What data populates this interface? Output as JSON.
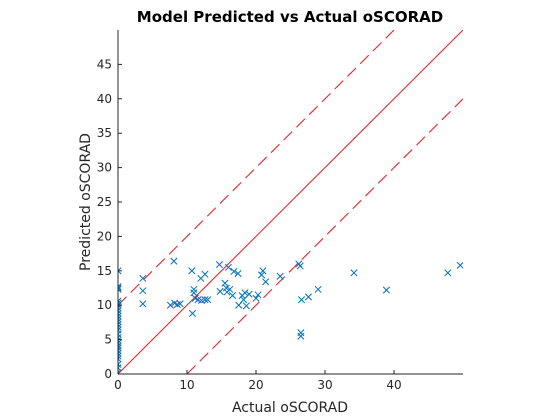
{
  "chart_data": {
    "type": "scatter",
    "title": "Model Predicted vs Actual oSCORAD",
    "xlabel": "Actual oSCORAD",
    "ylabel": "Predicted oSCORAD",
    "xlim": [
      0,
      50
    ],
    "ylim": [
      0,
      50
    ],
    "xticks": [
      0,
      10,
      20,
      30,
      40
    ],
    "yticks": [
      0,
      5,
      10,
      15,
      20,
      25,
      30,
      35,
      40,
      45
    ],
    "grid": false,
    "marker": "x",
    "colors": {
      "points": "#0072bd",
      "identity_line": "#e8262b",
      "band_lines": "#e8262b",
      "axes": "#262626"
    },
    "reference_lines": [
      {
        "style": "solid",
        "points": [
          [
            0,
            0
          ],
          [
            50,
            50
          ]
        ]
      },
      {
        "style": "dashed",
        "points": [
          [
            0,
            10
          ],
          [
            40,
            50
          ]
        ]
      },
      {
        "style": "dashed",
        "points": [
          [
            10,
            0
          ],
          [
            50,
            40
          ]
        ]
      }
    ],
    "points": [
      [
        0,
        15.0
      ],
      [
        0,
        12.7
      ],
      [
        0,
        12.5
      ],
      [
        0,
        12.3
      ],
      [
        0,
        10.6
      ],
      [
        0,
        10.3
      ],
      [
        0,
        10.0
      ],
      [
        0,
        9.6
      ],
      [
        0,
        9.2
      ],
      [
        0,
        8.8
      ],
      [
        0,
        8.4
      ],
      [
        0,
        8.0
      ],
      [
        0,
        7.6
      ],
      [
        0,
        7.2
      ],
      [
        0,
        6.8
      ],
      [
        0,
        6.4
      ],
      [
        0,
        5.8
      ],
      [
        0,
        5.3
      ],
      [
        0,
        4.9
      ],
      [
        0,
        4.5
      ],
      [
        0,
        4.1
      ],
      [
        0,
        3.8
      ],
      [
        0,
        3.4
      ],
      [
        0,
        3.0
      ],
      [
        0,
        2.6
      ],
      [
        0,
        2.2
      ],
      [
        0,
        1.4
      ],
      [
        0,
        0.9
      ],
      [
        0,
        0.2
      ],
      [
        3.6,
        13.9
      ],
      [
        3.6,
        12.1
      ],
      [
        3.6,
        10.2
      ],
      [
        7.6,
        10.0
      ],
      [
        8.1,
        16.4
      ],
      [
        8.2,
        10.3
      ],
      [
        8.6,
        10.1
      ],
      [
        9.0,
        10.2
      ],
      [
        10.7,
        15.0
      ],
      [
        10.8,
        8.8
      ],
      [
        11.0,
        12.3
      ],
      [
        11.0,
        11.8
      ],
      [
        11.2,
        11.0
      ],
      [
        11.6,
        10.8
      ],
      [
        12.0,
        13.9
      ],
      [
        12.1,
        10.7
      ],
      [
        12.6,
        14.5
      ],
      [
        12.6,
        10.8
      ],
      [
        13.0,
        10.8
      ],
      [
        14.7,
        15.9
      ],
      [
        14.8,
        12.0
      ],
      [
        15.5,
        13.2
      ],
      [
        15.7,
        12.5
      ],
      [
        15.8,
        11.9
      ],
      [
        16.0,
        15.5
      ],
      [
        16.2,
        12.3
      ],
      [
        16.6,
        11.4
      ],
      [
        16.8,
        14.9
      ],
      [
        17.4,
        14.6
      ],
      [
        17.5,
        10.0
      ],
      [
        18.0,
        11.4
      ],
      [
        18.2,
        10.8
      ],
      [
        18.4,
        11.8
      ],
      [
        18.6,
        9.9
      ],
      [
        19.0,
        11.6
      ],
      [
        20.0,
        11.0
      ],
      [
        20.3,
        11.5
      ],
      [
        20.8,
        14.4
      ],
      [
        21.0,
        15.0
      ],
      [
        21.4,
        13.4
      ],
      [
        23.5,
        14.2
      ],
      [
        26.2,
        16.0
      ],
      [
        26.4,
        15.7
      ],
      [
        26.5,
        6.0
      ],
      [
        26.5,
        5.5
      ],
      [
        26.6,
        10.8
      ],
      [
        27.6,
        11.2
      ],
      [
        29.0,
        12.3
      ],
      [
        34.2,
        14.7
      ],
      [
        38.9,
        12.2
      ],
      [
        47.8,
        14.7
      ],
      [
        49.6,
        15.8
      ]
    ]
  }
}
